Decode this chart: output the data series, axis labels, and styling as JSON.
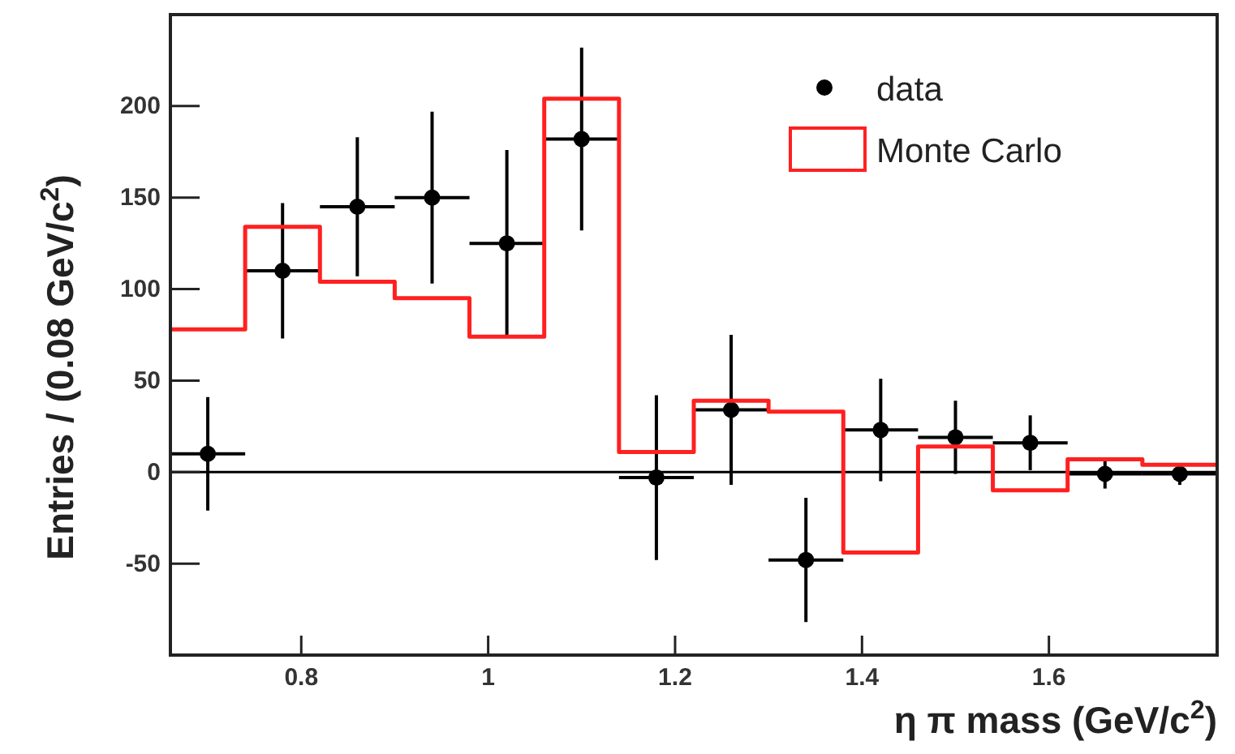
{
  "chart_data": {
    "type": "scatter",
    "xlabel": "η π mass (GeV/c$^{2}$)",
    "ylabel": "Entries / (0.08 GeV/c$^{2}$)",
    "xlim": [
      0.66,
      1.78
    ],
    "ylim": [
      -100,
      250
    ],
    "xticks": [
      0.8,
      1,
      1.2,
      1.4,
      1.6
    ],
    "yticks": [
      -50,
      0,
      50,
      100,
      150,
      200
    ],
    "legend": "top right",
    "marker": "circle",
    "ref_lines": [
      {
        "axis": "y",
        "value": 0,
        "color": "#000000"
      }
    ],
    "series": [
      {
        "name": "data",
        "color": "#000000",
        "x": [
          0.7,
          0.78,
          0.86,
          0.94,
          1.02,
          1.1,
          1.18,
          1.26,
          1.34,
          1.42,
          1.5,
          1.58,
          1.66,
          1.74
        ],
        "values": [
          10,
          110,
          145,
          150,
          125,
          182,
          -3,
          34,
          -48,
          23,
          19,
          16,
          -1,
          -1
        ],
        "errors": [
          31,
          37,
          38,
          47,
          51,
          50,
          45,
          41,
          34,
          28,
          20,
          15,
          8,
          6
        ],
        "xerrors": [
          0.04,
          0.04,
          0.04,
          0.04,
          0.04,
          0.04,
          0.04,
          0.04,
          0.04,
          0.04,
          0.04,
          0.04,
          0.04,
          0.04
        ]
      },
      {
        "name": "Monte Carlo",
        "type": "step",
        "marker": "none",
        "color": "#ff2020",
        "x": [
          0.66,
          0.74,
          0.82,
          0.9,
          0.98,
          1.06,
          1.14,
          1.22,
          1.3,
          1.38,
          1.46,
          1.54,
          1.62,
          1.7,
          1.78
        ],
        "values": [
          78,
          134,
          104,
          95,
          74,
          204,
          11,
          39,
          33,
          -44,
          14,
          -10,
          7,
          4,
          4
        ]
      }
    ]
  }
}
